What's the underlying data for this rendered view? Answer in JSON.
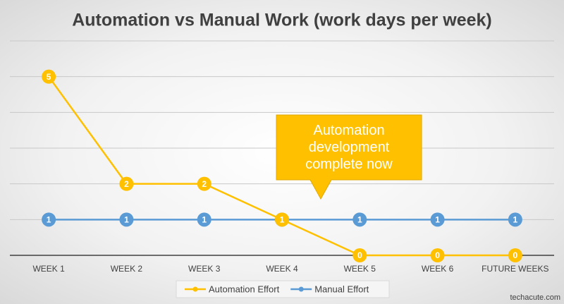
{
  "chart_data": {
    "type": "line",
    "title": "Automation vs Manual Work (work days per week)",
    "categories": [
      "WEEK 1",
      "WEEK 2",
      "WEEK 3",
      "WEEK 4",
      "WEEK 5",
      "WEEK 6",
      "FUTURE WEEKS"
    ],
    "series": [
      {
        "name": "Automation Effort",
        "color": "#ffc000",
        "values": [
          5,
          2,
          2,
          1,
          0,
          0,
          0
        ]
      },
      {
        "name": "Manual Effort",
        "color": "#5b9bd5",
        "values": [
          1,
          1,
          1,
          1,
          1,
          1,
          1
        ]
      }
    ],
    "ylim": [
      0,
      6
    ],
    "yticks": [
      0,
      1,
      2,
      3,
      4,
      5,
      6
    ],
    "grid": true,
    "legend": "bottom",
    "annotation": "Automation development complete now",
    "watermark": "techacute.com"
  }
}
